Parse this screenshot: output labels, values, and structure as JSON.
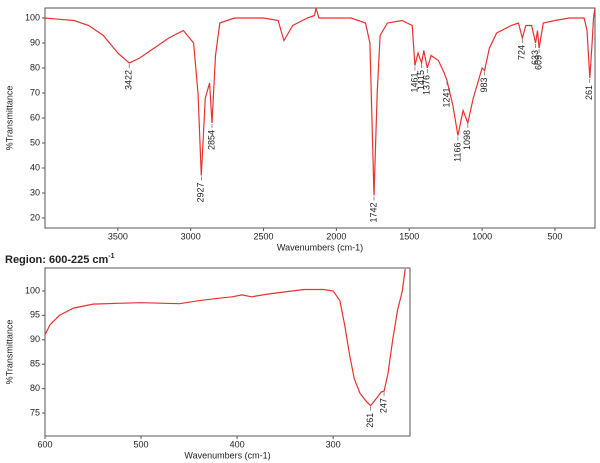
{
  "chart_data": [
    {
      "type": "line",
      "xlabel": "Wavenumbers (cm-1)",
      "ylabel": "%Transmittance",
      "color": "#e8322f",
      "xlim": [
        4000,
        225
      ],
      "ylim": [
        16,
        104
      ],
      "xticks": [
        3500,
        3000,
        2500,
        2000,
        1500,
        1000,
        500
      ],
      "yticks": [
        20,
        30,
        40,
        50,
        60,
        70,
        80,
        90,
        100
      ],
      "x": [
        4000,
        3900,
        3800,
        3700,
        3600,
        3500,
        3422,
        3350,
        3250,
        3150,
        3050,
        2980,
        2950,
        2927,
        2900,
        2870,
        2854,
        2830,
        2800,
        2700,
        2500,
        2400,
        2360,
        2340,
        2300,
        2200,
        2150,
        2140,
        2120,
        2000,
        1900,
        1800,
        1770,
        1742,
        1720,
        1700,
        1650,
        1550,
        1480,
        1461,
        1440,
        1415,
        1400,
        1376,
        1350,
        1300,
        1260,
        1241,
        1200,
        1166,
        1130,
        1098,
        1060,
        1000,
        983,
        950,
        900,
        800,
        750,
        724,
        700,
        660,
        633,
        620,
        609,
        580,
        500,
        400,
        300,
        280,
        261,
        245,
        235,
        225
      ],
      "values": [
        100,
        99.5,
        99,
        97,
        93,
        86,
        82,
        84,
        88,
        92,
        95,
        90,
        70,
        37,
        68,
        74,
        58,
        85,
        98,
        100,
        100,
        99,
        91,
        93,
        97,
        100,
        101,
        104,
        100,
        100,
        100,
        98,
        90,
        29,
        70,
        93,
        98,
        99,
        97,
        81,
        86,
        82,
        87,
        80,
        85,
        83,
        78,
        75,
        65,
        53,
        63,
        58,
        68,
        80,
        79,
        88,
        94,
        97,
        98,
        92,
        97,
        97,
        90,
        95,
        88,
        98,
        99,
        100,
        100,
        95,
        76,
        90,
        100,
        104
      ],
      "peaks": [
        3422,
        2927,
        2854,
        1742,
        1461,
        1415,
        1376,
        1241,
        1166,
        1098,
        983,
        724,
        633,
        609,
        261
      ]
    },
    {
      "type": "line",
      "title": "Region: 600-225 cm",
      "title_superscript": "-1",
      "xlabel": "Wavenumbers (cm-1)",
      "ylabel": "%Transmittance",
      "color": "#e8322f",
      "xlim": [
        600,
        220
      ],
      "ylim": [
        70.3,
        104.7
      ],
      "xticks": [
        600,
        500,
        400,
        300
      ],
      "yticks": [
        75,
        80,
        85,
        90,
        95,
        100
      ],
      "x": [
        600,
        595,
        585,
        570,
        550,
        520,
        500,
        480,
        460,
        440,
        420,
        405,
        395,
        385,
        370,
        350,
        330,
        310,
        300,
        293,
        288,
        283,
        278,
        272,
        266,
        261,
        255,
        250,
        247,
        243,
        238,
        233,
        228,
        225
      ],
      "values": [
        91,
        93,
        95,
        96.5,
        97.3,
        97.5,
        97.6,
        97.5,
        97.4,
        98,
        98.5,
        98.8,
        99.2,
        98.8,
        99.3,
        99.8,
        100.3,
        100.3,
        100,
        98,
        93,
        87,
        82,
        79,
        77.5,
        76.5,
        78,
        79.3,
        79.5,
        83,
        90,
        96,
        100,
        104.5
      ],
      "peaks": [
        261,
        247
      ]
    }
  ]
}
